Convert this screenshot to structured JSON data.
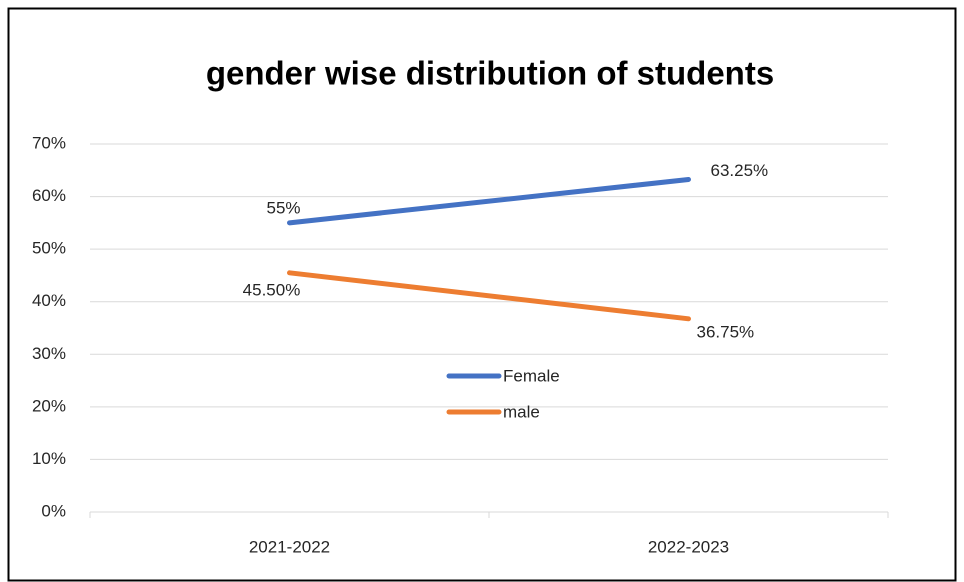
{
  "chart_data": {
    "type": "line",
    "title": "gender wise distribution of students",
    "categories": [
      "2021-2022",
      "2022-2023"
    ],
    "series": [
      {
        "name": "Female",
        "color": "#4472c4",
        "values": [
          55,
          63.25
        ],
        "value_labels": [
          "55%",
          "63.25%"
        ]
      },
      {
        "name": "male",
        "color": "#ed7d31",
        "values": [
          45.5,
          36.75
        ],
        "value_labels": [
          "45.50%",
          "36.75%"
        ]
      }
    ],
    "ylim": [
      0,
      70
    ],
    "yticks": [
      {
        "value": 0,
        "label": "0%"
      },
      {
        "value": 10,
        "label": "10%"
      },
      {
        "value": 20,
        "label": "20%"
      },
      {
        "value": 30,
        "label": "30%"
      },
      {
        "value": 40,
        "label": "40%"
      },
      {
        "value": 50,
        "label": "50%"
      },
      {
        "value": 60,
        "label": "60%"
      },
      {
        "value": 70,
        "label": "70%"
      }
    ],
    "grid": true,
    "legend": "center"
  }
}
